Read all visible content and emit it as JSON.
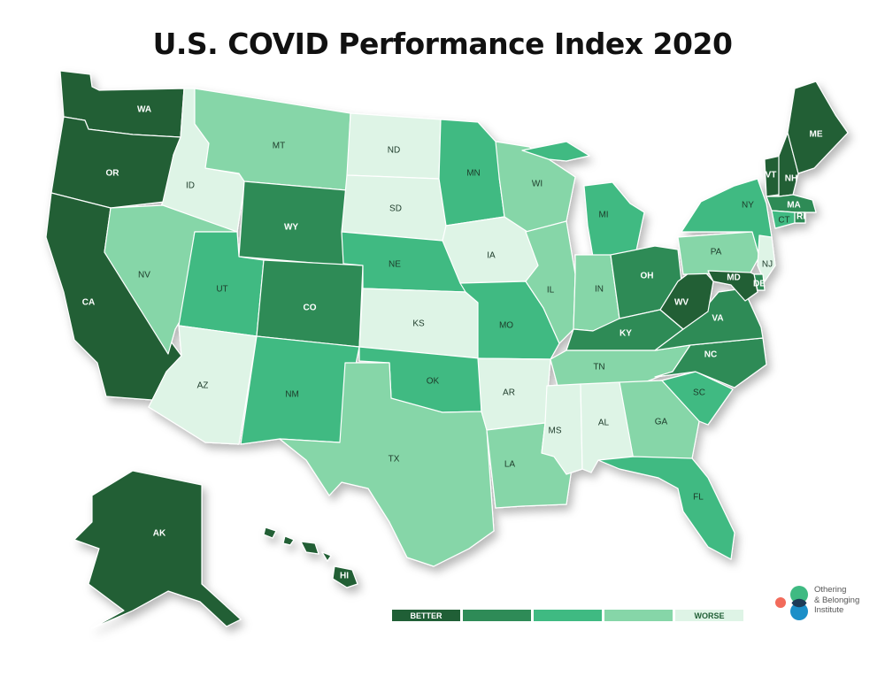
{
  "title": "U.S. COVID Performance Index 2020",
  "colors": {
    "1": "#205f36",
    "2": "#2e8b57",
    "3": "#3fba82",
    "4": "#86d6a8",
    "5": "#def4e6"
  },
  "states": [
    {
      "abbr": "WA",
      "tier": 1
    },
    {
      "abbr": "OR",
      "tier": 1
    },
    {
      "abbr": "CA",
      "tier": 1
    },
    {
      "abbr": "ID",
      "tier": 5
    },
    {
      "abbr": "NV",
      "tier": 4
    },
    {
      "abbr": "MT",
      "tier": 4
    },
    {
      "abbr": "WY",
      "tier": 2
    },
    {
      "abbr": "UT",
      "tier": 3
    },
    {
      "abbr": "AZ",
      "tier": 5
    },
    {
      "abbr": "CO",
      "tier": 2
    },
    {
      "abbr": "NM",
      "tier": 3
    },
    {
      "abbr": "ND",
      "tier": 5
    },
    {
      "abbr": "SD",
      "tier": 5
    },
    {
      "abbr": "NE",
      "tier": 3
    },
    {
      "abbr": "KS",
      "tier": 5
    },
    {
      "abbr": "OK",
      "tier": 3
    },
    {
      "abbr": "TX",
      "tier": 4
    },
    {
      "abbr": "MN",
      "tier": 3
    },
    {
      "abbr": "IA",
      "tier": 5
    },
    {
      "abbr": "MO",
      "tier": 3
    },
    {
      "abbr": "AR",
      "tier": 5
    },
    {
      "abbr": "LA",
      "tier": 4
    },
    {
      "abbr": "WI",
      "tier": 4
    },
    {
      "abbr": "IL",
      "tier": 4
    },
    {
      "abbr": "MI",
      "tier": 3
    },
    {
      "abbr": "IN",
      "tier": 4
    },
    {
      "abbr": "OH",
      "tier": 2
    },
    {
      "abbr": "KY",
      "tier": 2
    },
    {
      "abbr": "TN",
      "tier": 4
    },
    {
      "abbr": "MS",
      "tier": 5
    },
    {
      "abbr": "AL",
      "tier": 5
    },
    {
      "abbr": "GA",
      "tier": 4
    },
    {
      "abbr": "FL",
      "tier": 3
    },
    {
      "abbr": "SC",
      "tier": 3
    },
    {
      "abbr": "NC",
      "tier": 2
    },
    {
      "abbr": "VA",
      "tier": 2
    },
    {
      "abbr": "WV",
      "tier": 1
    },
    {
      "abbr": "PA",
      "tier": 4
    },
    {
      "abbr": "NY",
      "tier": 3
    },
    {
      "abbr": "VT",
      "tier": 1
    },
    {
      "abbr": "NH",
      "tier": 1
    },
    {
      "abbr": "ME",
      "tier": 1
    },
    {
      "abbr": "MA",
      "tier": 2
    },
    {
      "abbr": "CT",
      "tier": 3
    },
    {
      "abbr": "RI",
      "tier": 2
    },
    {
      "abbr": "NJ",
      "tier": 5
    },
    {
      "abbr": "DE",
      "tier": 2
    },
    {
      "abbr": "MD",
      "tier": 1
    },
    {
      "abbr": "AK",
      "tier": 1
    },
    {
      "abbr": "HI",
      "tier": 1
    }
  ],
  "legend": [
    {
      "tier": 1,
      "label": "BETTER"
    },
    {
      "tier": 2,
      "label": ""
    },
    {
      "tier": 3,
      "label": ""
    },
    {
      "tier": 4,
      "label": ""
    },
    {
      "tier": 5,
      "label": "WORSE"
    }
  ],
  "logo": {
    "line1": "Othering",
    "line2": "& Belonging",
    "line3": "Institute",
    "colors": {
      "green": "#3fba82",
      "blue": "#1b8fc8",
      "red": "#f26b5b",
      "overlap": "#1c3b57"
    }
  }
}
